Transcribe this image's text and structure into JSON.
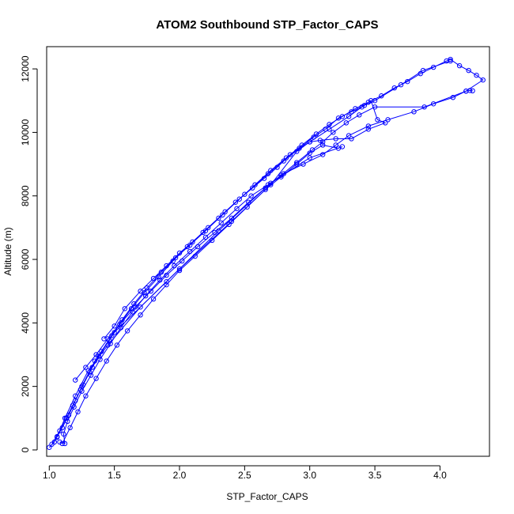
{
  "chart_data": {
    "type": "scatter",
    "title": "ATOM2 Southbound STP_Factor_CAPS",
    "xlabel": "STP_Factor_CAPS",
    "ylabel": "Altitude (m)",
    "xlim": [
      0.98,
      4.38
    ],
    "ylim": [
      -200,
      12700
    ],
    "xticks": [
      1.0,
      1.5,
      2.0,
      2.5,
      3.0,
      3.5,
      4.0
    ],
    "xtick_labels": [
      "1.0",
      "1.5",
      "2.0",
      "2.5",
      "3.0",
      "3.5",
      "4.0"
    ],
    "yticks": [
      0,
      2000,
      4000,
      6000,
      8000,
      10000,
      12000
    ],
    "ytick_labels": [
      "0",
      "2000",
      "4000",
      "6000",
      "8000",
      "10000",
      "12000"
    ],
    "grid": false,
    "legend": "none",
    "series_color": "#0000ff",
    "series": [
      {
        "points": [
          [
            1.0,
            80
          ],
          [
            1.04,
            250
          ],
          [
            1.06,
            420
          ],
          [
            1.1,
            700
          ],
          [
            1.15,
            1100
          ],
          [
            1.2,
            1550
          ],
          [
            1.26,
            2050
          ],
          [
            1.33,
            2600
          ],
          [
            1.4,
            3100
          ],
          [
            1.48,
            3600
          ],
          [
            1.56,
            4100
          ],
          [
            1.65,
            4600
          ],
          [
            1.75,
            5100
          ],
          [
            1.86,
            5600
          ],
          [
            1.97,
            6050
          ],
          [
            2.08,
            6450
          ],
          [
            2.2,
            6900
          ],
          [
            2.33,
            7400
          ],
          [
            2.46,
            7900
          ],
          [
            2.58,
            8350
          ],
          [
            2.7,
            8800
          ],
          [
            2.82,
            9200
          ],
          [
            2.94,
            9600
          ],
          [
            3.05,
            9950
          ],
          [
            3.15,
            10250
          ],
          [
            3.25,
            10500
          ],
          [
            3.35,
            10750
          ],
          [
            3.45,
            10950
          ],
          [
            3.55,
            11150
          ],
          [
            3.65,
            11400
          ],
          [
            3.75,
            11600
          ],
          [
            3.85,
            11850
          ],
          [
            3.95,
            12050
          ],
          [
            4.05,
            12250
          ],
          [
            4.08,
            12300
          ],
          [
            4.15,
            12100
          ],
          [
            4.22,
            11950
          ],
          [
            4.28,
            11800
          ],
          [
            4.33,
            11650
          ],
          [
            4.2,
            11300
          ],
          [
            4.1,
            11100
          ],
          [
            3.95,
            10900
          ],
          [
            3.8,
            10650
          ],
          [
            3.6,
            10400
          ],
          [
            3.45,
            10200
          ],
          [
            3.3,
            9900
          ],
          [
            3.2,
            9600
          ],
          [
            3.1,
            9300
          ],
          [
            2.95,
            9000
          ],
          [
            2.8,
            8700
          ],
          [
            2.68,
            8350
          ],
          [
            2.55,
            8000
          ],
          [
            2.44,
            7600
          ],
          [
            2.32,
            7150
          ],
          [
            2.2,
            6700
          ],
          [
            2.08,
            6250
          ],
          [
            1.96,
            5800
          ],
          [
            1.85,
            5350
          ],
          [
            1.74,
            4850
          ],
          [
            1.64,
            4350
          ],
          [
            1.55,
            3850
          ],
          [
            1.47,
            3350
          ],
          [
            1.39,
            2850
          ],
          [
            1.32,
            2350
          ],
          [
            1.25,
            1850
          ],
          [
            1.19,
            1350
          ],
          [
            1.14,
            900
          ],
          [
            1.11,
            500
          ],
          [
            1.12,
            200
          ],
          [
            1.08,
            250
          ]
        ]
      },
      {
        "points": [
          [
            1.02,
            180
          ],
          [
            1.08,
            600
          ],
          [
            1.13,
            1000
          ],
          [
            1.18,
            1400
          ],
          [
            1.24,
            1900
          ],
          [
            1.31,
            2450
          ],
          [
            1.38,
            2950
          ],
          [
            1.46,
            3450
          ],
          [
            1.54,
            3950
          ],
          [
            1.63,
            4450
          ],
          [
            1.73,
            4950
          ],
          [
            1.84,
            5450
          ],
          [
            1.95,
            5950
          ],
          [
            2.06,
            6400
          ],
          [
            2.18,
            6850
          ],
          [
            2.3,
            7300
          ],
          [
            2.43,
            7800
          ],
          [
            2.56,
            8250
          ],
          [
            2.68,
            8700
          ],
          [
            2.8,
            9100
          ],
          [
            2.92,
            9500
          ],
          [
            3.03,
            9850
          ],
          [
            3.12,
            10100
          ],
          [
            3.22,
            10450
          ],
          [
            3.32,
            10650
          ],
          [
            3.42,
            10850
          ],
          [
            3.5,
            11000
          ],
          [
            3.7,
            11500
          ],
          [
            3.87,
            11950
          ],
          [
            4.08,
            12250
          ]
        ]
      },
      {
        "points": [
          [
            1.1,
            200
          ],
          [
            1.16,
            700
          ],
          [
            1.22,
            1200
          ],
          [
            1.28,
            1700
          ],
          [
            1.36,
            2250
          ],
          [
            1.44,
            2800
          ],
          [
            1.52,
            3300
          ],
          [
            1.6,
            3750
          ],
          [
            1.7,
            4250
          ],
          [
            1.8,
            4750
          ],
          [
            1.9,
            5200
          ],
          [
            2.0,
            5650
          ],
          [
            2.12,
            6100
          ],
          [
            2.25,
            6600
          ],
          [
            2.38,
            7100
          ],
          [
            2.52,
            7650
          ],
          [
            2.66,
            8200
          ],
          [
            2.78,
            8600
          ],
          [
            2.9,
            9000
          ],
          [
            3.0,
            9350
          ],
          [
            3.1,
            9600
          ],
          [
            3.22,
            9500
          ],
          [
            3.25,
            9550
          ],
          [
            3.0,
            9200
          ],
          [
            2.7,
            8400
          ],
          [
            2.3,
            6900
          ],
          [
            1.9,
            5300
          ],
          [
            1.5,
            3700
          ],
          [
            1.35,
            2800
          ],
          [
            1.25,
            2000
          ]
        ]
      },
      {
        "points": [
          [
            1.42,
            3500
          ],
          [
            1.5,
            3900
          ],
          [
            1.58,
            4450
          ],
          [
            1.7,
            5000
          ],
          [
            1.8,
            5400
          ],
          [
            1.9,
            5800
          ],
          [
            2.0,
            6200
          ],
          [
            2.1,
            6550
          ],
          [
            2.22,
            7000
          ],
          [
            2.35,
            7500
          ],
          [
            2.5,
            8050
          ],
          [
            2.65,
            8550
          ],
          [
            2.75,
            8900
          ],
          [
            2.85,
            9300
          ],
          [
            3.0,
            9700
          ],
          [
            3.15,
            10100
          ],
          [
            3.3,
            10500
          ],
          [
            3.4,
            10800
          ],
          [
            3.47,
            11000
          ],
          [
            3.52,
            10400
          ],
          [
            3.58,
            10300
          ],
          [
            3.45,
            10100
          ],
          [
            3.32,
            9800
          ],
          [
            3.2,
            9800
          ],
          [
            3.08,
            9750
          ],
          [
            3.0,
            9700
          ],
          [
            2.9,
            9400
          ],
          [
            2.7,
            8350
          ],
          [
            2.4,
            7200
          ],
          [
            2.0,
            5700
          ],
          [
            1.7,
            4500
          ],
          [
            1.45,
            3300
          ],
          [
            1.3,
            2500
          ],
          [
            1.2,
            1700
          ],
          [
            1.12,
            1000
          ],
          [
            1.06,
            400
          ]
        ]
      },
      {
        "points": [
          [
            1.2,
            2200
          ],
          [
            1.28,
            2600
          ],
          [
            1.36,
            3000
          ],
          [
            1.45,
            3500
          ],
          [
            1.55,
            4000
          ],
          [
            1.66,
            4500
          ],
          [
            1.78,
            5000
          ],
          [
            1.9,
            5500
          ],
          [
            2.02,
            5950
          ],
          [
            2.14,
            6400
          ],
          [
            2.27,
            6850
          ],
          [
            2.4,
            7300
          ],
          [
            2.53,
            7800
          ],
          [
            2.66,
            8250
          ],
          [
            2.78,
            8650
          ],
          [
            2.9,
            9050
          ],
          [
            3.02,
            9450
          ],
          [
            3.1,
            9700
          ],
          [
            3.18,
            10000
          ],
          [
            3.28,
            10300
          ],
          [
            3.38,
            10550
          ],
          [
            3.5,
            10800
          ],
          [
            3.88,
            10800
          ],
          [
            4.2,
            11300
          ],
          [
            4.23,
            11320
          ],
          [
            4.25,
            11310
          ]
        ]
      }
    ]
  }
}
